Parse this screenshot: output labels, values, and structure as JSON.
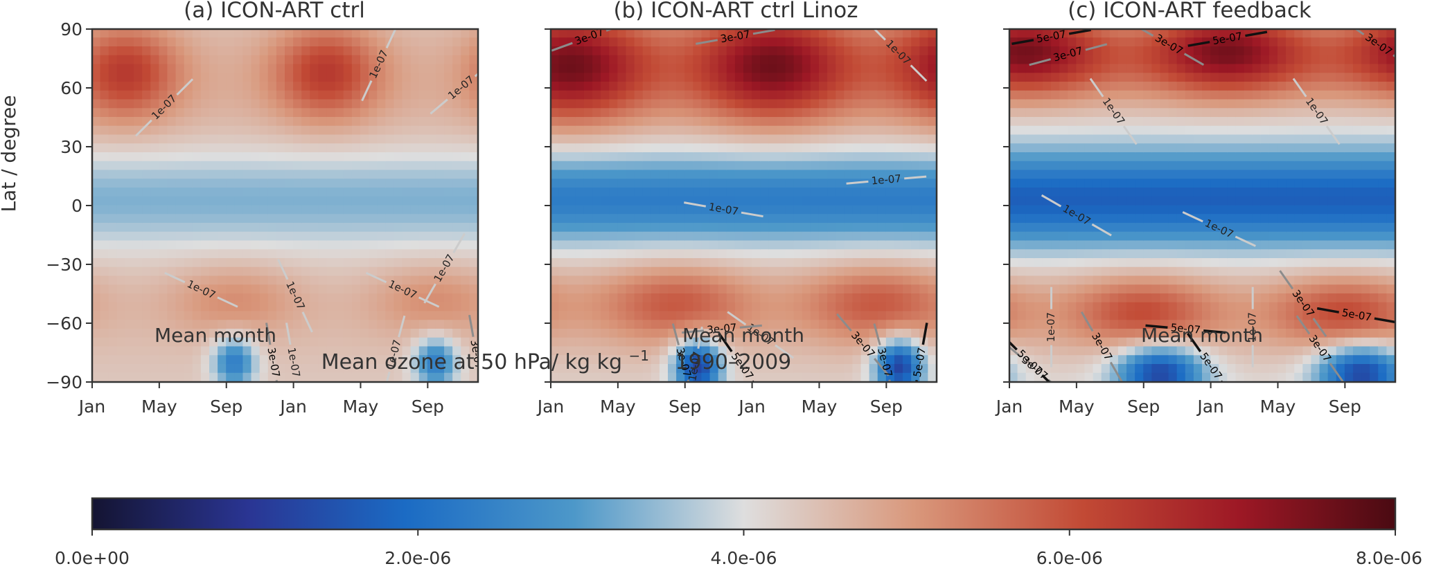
{
  "figure": {
    "colors": {
      "text": "#333333",
      "frame": "#333333",
      "contour_dark": "#111111",
      "contour_mid": "#8c8c8c",
      "contour_light": "#cccccc"
    },
    "colormap": [
      [
        0.0,
        "#141432"
      ],
      [
        0.12,
        "#2a3593"
      ],
      [
        0.24,
        "#1b6bc4"
      ],
      [
        0.37,
        "#4d98c9"
      ],
      [
        0.5,
        "#dedede"
      ],
      [
        0.63,
        "#d9987c"
      ],
      [
        0.76,
        "#c24a35"
      ],
      [
        0.88,
        "#9d1825"
      ],
      [
        1.0,
        "#4a0a12"
      ]
    ],
    "colorbar": {
      "title": "Mean ozone at 50 hPa/ kg kg",
      "title_sup": "−1",
      "period": "1990–2009",
      "min": 0,
      "max": 8e-06,
      "ticks": [
        {
          "value": 0,
          "label": "0.0e+00"
        },
        {
          "value": 2e-06,
          "label": "2.0e-06"
        },
        {
          "value": 4e-06,
          "label": "4.0e-06"
        },
        {
          "value": 6e-06,
          "label": "6.0e-06"
        },
        {
          "value": 8e-06,
          "label": "8.0e-06"
        }
      ]
    }
  },
  "chart_data": [
    {
      "type": "heatmap",
      "title": "(a) ICON-ART ctrl",
      "xlabel": "Mean month",
      "ylabel": "Lat / degree",
      "xlim": [
        0,
        23
      ],
      "ylim": [
        -90,
        90
      ],
      "x_ticks": [
        {
          "value": 0,
          "label": "Jan"
        },
        {
          "value": 4,
          "label": "May"
        },
        {
          "value": 8,
          "label": "Sep"
        },
        {
          "value": 12,
          "label": "Jan"
        },
        {
          "value": 16,
          "label": "May"
        },
        {
          "value": 20,
          "label": "Sep"
        }
      ],
      "y_ticks": [
        {
          "value": 90,
          "label": "90"
        },
        {
          "value": 60,
          "label": "60"
        },
        {
          "value": 30,
          "label": "30"
        },
        {
          "value": 0,
          "label": "0"
        },
        {
          "value": -30,
          "label": "−30"
        },
        {
          "value": -60,
          "label": "−60"
        },
        {
          "value": -90,
          "label": "−90"
        }
      ],
      "field": {
        "blobs": [
          {
            "x": 2.0,
            "lat": 68,
            "sx": 2.2,
            "sy": 17,
            "amp": 1.7e-06,
            "period": 12
          },
          {
            "x": 8.5,
            "lat": -48,
            "sx": 2.8,
            "sy": 13,
            "amp": 7e-07,
            "period": 12
          },
          {
            "x": 8.5,
            "lat": -80,
            "sx": 0.9,
            "sy": 9,
            "amp": -2.1e-06,
            "period": 12
          }
        ],
        "bands": [
          {
            "lat": 3,
            "s": 17,
            "amp": -1e-06
          },
          {
            "lat": 62,
            "s": 24,
            "amp": 4e-07
          },
          {
            "lat": -58,
            "s": 20,
            "amp": 2e-07
          }
        ],
        "base": 4.3e-06
      },
      "contours": [
        {
          "level": "1e-07",
          "label": "1e-07",
          "tone": "light",
          "labels": [
            {
              "x": 4.3,
              "lat": 50,
              "rot": -45
            },
            {
              "x": 17.1,
              "lat": 72,
              "rot": -65
            },
            {
              "x": 22.0,
              "lat": 60,
              "rot": -40
            },
            {
              "x": 6.5,
              "lat": -43,
              "rot": 25
            },
            {
              "x": 12.1,
              "lat": -46,
              "rot": 65
            },
            {
              "x": 18.5,
              "lat": -43,
              "rot": 25
            },
            {
              "x": 21.0,
              "lat": -32,
              "rot": -60
            },
            {
              "x": 18.0,
              "lat": -76,
              "rot": -75
            },
            {
              "x": 12.0,
              "lat": -80,
              "rot": 80
            }
          ]
        },
        {
          "level": "3e-07",
          "label": "3e-07",
          "tone": "mid",
          "labels": [
            {
              "x": 10.8,
              "lat": -80,
              "rot": 80
            },
            {
              "x": 22.9,
              "lat": -76,
              "rot": 80
            }
          ]
        }
      ]
    },
    {
      "type": "heatmap",
      "title": "(b) ICON-ART ctrl Linoz",
      "xlabel": "Mean month",
      "ylabel": "",
      "xlim": [
        0,
        23
      ],
      "ylim": [
        -90,
        90
      ],
      "x_ticks": [
        {
          "value": 0,
          "label": "Jan"
        },
        {
          "value": 4,
          "label": "May"
        },
        {
          "value": 8,
          "label": "Sep"
        },
        {
          "value": 12,
          "label": "Jan"
        },
        {
          "value": 16,
          "label": "May"
        },
        {
          "value": 20,
          "label": "Sep"
        }
      ],
      "y_ticks": [
        {
          "value": 90,
          "label": ""
        },
        {
          "value": 60,
          "label": ""
        },
        {
          "value": 30,
          "label": ""
        },
        {
          "value": 0,
          "label": ""
        },
        {
          "value": -30,
          "label": ""
        },
        {
          "value": -60,
          "label": ""
        },
        {
          "value": -90,
          "label": ""
        }
      ],
      "field": {
        "blobs": [
          {
            "x": 1.2,
            "lat": 72,
            "sx": 3.2,
            "sy": 20,
            "amp": 2.5e-06,
            "period": 12
          },
          {
            "x": 7.5,
            "lat": -50,
            "sx": 3.2,
            "sy": 14,
            "amp": 1.3e-06,
            "period": 12
          },
          {
            "x": 8.8,
            "lat": -82,
            "sx": 1.0,
            "sy": 10,
            "amp": -3.2e-06,
            "period": 12
          }
        ],
        "bands": [
          {
            "lat": 3,
            "s": 16,
            "amp": -1.9e-06
          },
          {
            "lat": 68,
            "s": 22,
            "amp": 9e-07
          },
          {
            "lat": -55,
            "s": 20,
            "amp": 4e-07
          }
        ],
        "base": 4.2e-06
      },
      "contours": [
        {
          "level": "1e-07",
          "label": "1e-07",
          "tone": "light",
          "labels": [
            {
              "x": 20.7,
              "lat": 78,
              "rot": 45
            },
            {
              "x": 20.0,
              "lat": 13,
              "rot": -5
            },
            {
              "x": 10.3,
              "lat": -2,
              "rot": 10
            },
            {
              "x": 12.5,
              "lat": -66,
              "rot": 35
            },
            {
              "x": 8.6,
              "lat": -82,
              "rot": -80
            }
          ]
        },
        {
          "level": "3e-07",
          "label": "3e-07",
          "tone": "mid",
          "labels": [
            {
              "x": 2.3,
              "lat": 86,
              "rot": -20
            },
            {
              "x": 11.0,
              "lat": 86,
              "rot": -10
            },
            {
              "x": 10.2,
              "lat": -63,
              "rot": -5
            },
            {
              "x": 18.6,
              "lat": -71,
              "rot": 50
            },
            {
              "x": 7.9,
              "lat": -80,
              "rot": 75
            },
            {
              "x": 19.9,
              "lat": -80,
              "rot": 75
            }
          ]
        },
        {
          "level": "5e-07",
          "label": "5e-07",
          "tone": "dark",
          "labels": [
            {
              "x": 11.4,
              "lat": -82,
              "rot": 55
            },
            {
              "x": 22.0,
              "lat": -80,
              "rot": -80
            }
          ]
        }
      ]
    },
    {
      "type": "heatmap",
      "title": "(c) ICON-ART feedback",
      "xlabel": "Mean month",
      "ylabel": "",
      "xlim": [
        0,
        23
      ],
      "ylim": [
        -90,
        90
      ],
      "x_ticks": [
        {
          "value": 0,
          "label": "Jan"
        },
        {
          "value": 4,
          "label": "May"
        },
        {
          "value": 8,
          "label": "Sep"
        },
        {
          "value": 12,
          "label": "Jan"
        },
        {
          "value": 16,
          "label": "May"
        },
        {
          "value": 20,
          "label": "Sep"
        }
      ],
      "y_ticks": [
        {
          "value": 90,
          "label": ""
        },
        {
          "value": 60,
          "label": ""
        },
        {
          "value": 30,
          "label": ""
        },
        {
          "value": 0,
          "label": ""
        },
        {
          "value": -30,
          "label": ""
        },
        {
          "value": -60,
          "label": ""
        },
        {
          "value": -90,
          "label": ""
        }
      ],
      "field": {
        "blobs": [
          {
            "x": 1.0,
            "lat": 80,
            "sx": 3.2,
            "sy": 15,
            "amp": 2.4e-06,
            "period": 12
          },
          {
            "x": 8.0,
            "lat": -55,
            "sx": 3.0,
            "sy": 13,
            "amp": 1.4e-06,
            "period": 12
          },
          {
            "x": 9.0,
            "lat": -85,
            "sx": 1.8,
            "sy": 10,
            "amp": -3e-06,
            "period": 12
          }
        ],
        "bands": [
          {
            "lat": 3,
            "s": 17,
            "amp": -2.3e-06
          },
          {
            "lat": 72,
            "s": 18,
            "amp": 1.2e-06
          },
          {
            "lat": -55,
            "s": 20,
            "amp": 7e-07
          }
        ],
        "base": 4e-06
      },
      "contours": [
        {
          "level": "1e-07",
          "label": "1e-07",
          "tone": "light",
          "labels": [
            {
              "x": 6.2,
              "lat": 48,
              "rot": 55
            },
            {
              "x": 18.3,
              "lat": 48,
              "rot": 55
            },
            {
              "x": 4.0,
              "lat": -5,
              "rot": 30
            },
            {
              "x": 12.5,
              "lat": -12,
              "rot": 25
            },
            {
              "x": 2.5,
              "lat": -62,
              "rot": -90
            },
            {
              "x": 14.5,
              "lat": -62,
              "rot": -90
            }
          ]
        },
        {
          "level": "3e-07",
          "label": "3e-07",
          "tone": "mid",
          "labels": [
            {
              "x": 3.5,
              "lat": 77,
              "rot": -15
            },
            {
              "x": 9.5,
              "lat": 82,
              "rot": 30
            },
            {
              "x": 22.0,
              "lat": 82,
              "rot": 35
            },
            {
              "x": 5.5,
              "lat": -72,
              "rot": 60
            },
            {
              "x": 17.5,
              "lat": -50,
              "rot": 55
            },
            {
              "x": 18.5,
              "lat": -73,
              "rot": 55
            },
            {
              "x": 1.5,
              "lat": -83,
              "rot": 40
            }
          ]
        },
        {
          "level": "5e-07",
          "label": "5e-07",
          "tone": "dark",
          "labels": [
            {
              "x": 2.5,
              "lat": 86,
              "rot": -10
            },
            {
              "x": 13.0,
              "lat": 85,
              "rot": -10
            },
            {
              "x": 10.5,
              "lat": -63,
              "rot": 5
            },
            {
              "x": 12.0,
              "lat": -82,
              "rot": 55
            },
            {
              "x": 20.7,
              "lat": -56,
              "rot": 10
            },
            {
              "x": 1.2,
              "lat": -80,
              "rot": 45
            }
          ]
        }
      ]
    }
  ]
}
